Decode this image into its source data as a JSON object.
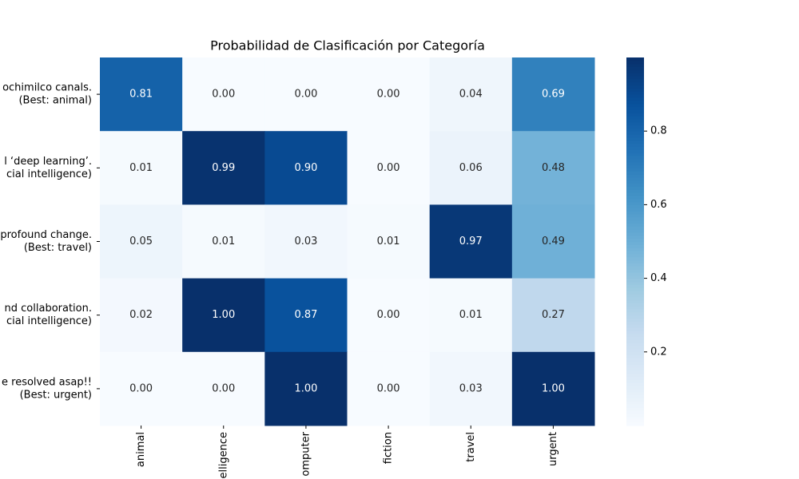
{
  "chart_data": {
    "type": "heatmap",
    "title": "Probabilidad de Clasificación por Categoría",
    "x_categories": [
      "animal",
      "elligence",
      "omputer",
      "fiction",
      "travel",
      "urgent"
    ],
    "y_categories": [
      [
        "ochimilco canals.",
        "(Best: animal)"
      ],
      [
        "l ‘deep learning’.",
        "cial intelligence)"
      ],
      [
        "profound change.",
        "(Best: travel)"
      ],
      [
        "nd collaboration.",
        "cial intelligence)"
      ],
      [
        "e resolved asap!!",
        "(Best: urgent)"
      ]
    ],
    "values": [
      [
        0.81,
        0,
        0,
        0,
        0.04,
        0.69
      ],
      [
        0.01,
        0.99,
        0.9,
        0,
        0.06,
        0.48
      ],
      [
        0.05,
        0.01,
        0.03,
        0.01,
        0.97,
        0.49
      ],
      [
        0.02,
        1,
        0.87,
        0,
        0.01,
        0.27
      ],
      [
        0,
        0,
        1,
        0,
        0.03,
        1
      ]
    ],
    "value_labels": [
      [
        "0.81",
        "0.00",
        "0.00",
        "0.00",
        "0.04",
        "0.69"
      ],
      [
        "0.01",
        "0.99",
        "0.90",
        "0.00",
        "0.06",
        "0.48"
      ],
      [
        "0.05",
        "0.01",
        "0.03",
        "0.01",
        "0.97",
        "0.49"
      ],
      [
        "0.02",
        "1.00",
        "0.87",
        "0.00",
        "0.01",
        "0.27"
      ],
      [
        "0.00",
        "0.00",
        "1.00",
        "0.00",
        "0.03",
        "1.00"
      ]
    ],
    "colormap": "Blues",
    "clim": [
      0,
      1
    ],
    "cticks": [
      0.2,
      0.4,
      0.6,
      0.8
    ]
  }
}
